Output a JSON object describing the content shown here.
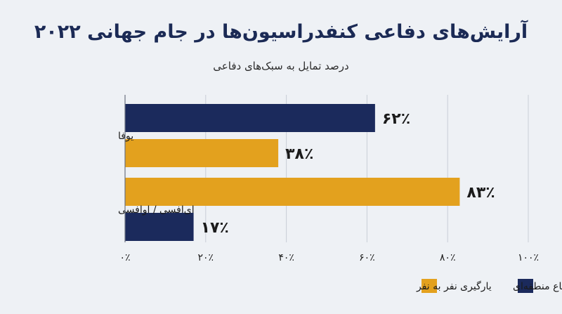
{
  "header": {
    "title": "آرایش‌های دفاعی کنفدراسیون‌ها در جام جهانی ۲۰۲۲",
    "subtitle": "درصد تمایل به سبک‌های دفاعی"
  },
  "colors": {
    "navy": "#1b2a5c",
    "gold": "#e3a11e",
    "background": "#eef1f5",
    "grid": "#c9ced6",
    "text": "#1b1b1b"
  },
  "chart_data": {
    "type": "bar",
    "orientation": "horizontal",
    "categories": [
      "یوفا",
      "ای‌افسی / اوافسی"
    ],
    "series": [
      {
        "name": "دفاع منطقه‌ای",
        "color": "#1b2a5c",
        "values": [
          62,
          17
        ],
        "labels": [
          "۶۲٪",
          "۱۷٪"
        ]
      },
      {
        "name": "یارگیری نفر به نفر",
        "color": "#e3a11e",
        "values": [
          38,
          83
        ],
        "labels": [
          "۳۸٪",
          "۸۳٪"
        ]
      }
    ],
    "bar_order": [
      [
        "دفاع منطقه‌ای",
        "یارگیری نفر به نفر"
      ],
      [
        "یارگیری نفر به نفر",
        "دفاع منطقه‌ای"
      ]
    ],
    "xlim": [
      0,
      100
    ],
    "xticks": [
      0,
      20,
      40,
      60,
      80,
      100
    ],
    "xtick_labels": [
      "۰٪",
      "۲۰٪",
      "۴۰٪",
      "۶۰٪",
      "۸۰٪",
      "۱۰۰٪"
    ],
    "grid": true,
    "legend_position": "bottom-right"
  }
}
